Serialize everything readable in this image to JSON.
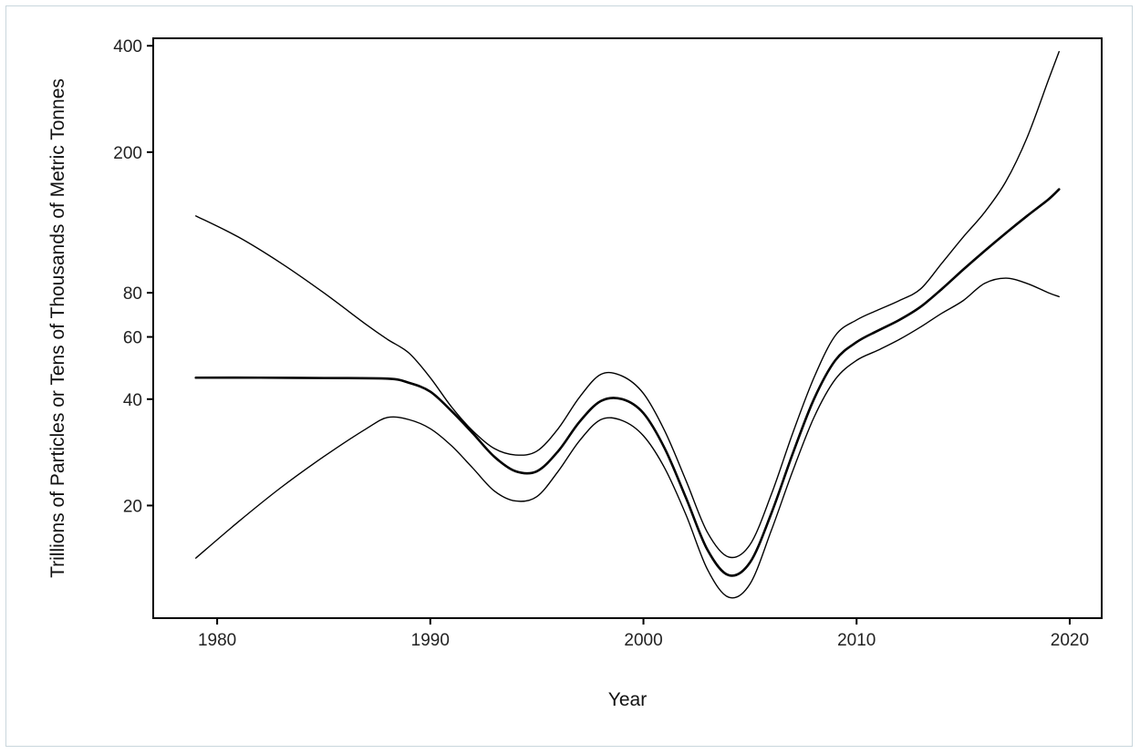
{
  "chart_data": {
    "type": "line",
    "title": "",
    "xlabel": "Year",
    "ylabel": "Trillions of Particles or Tens of Thousands of Metric Tonnes",
    "x_ticks": [
      1980,
      1990,
      2000,
      2010,
      2020
    ],
    "y_ticks": [
      20,
      40,
      60,
      80,
      200,
      400
    ],
    "xlim": [
      1977,
      2021.5
    ],
    "y_scale": "log",
    "ylim": [
      9.6,
      420
    ],
    "grid": false,
    "legend": "none",
    "series": [
      {
        "role": "estimate",
        "points": [
          [
            1979,
            46
          ],
          [
            1982,
            46
          ],
          [
            1985,
            45.9
          ],
          [
            1988,
            45.7
          ],
          [
            1989,
            44.5
          ],
          [
            1990,
            42
          ],
          [
            1991,
            37
          ],
          [
            1992,
            32
          ],
          [
            1993,
            27.5
          ],
          [
            1994,
            25
          ],
          [
            1995,
            25
          ],
          [
            1996,
            28.5
          ],
          [
            1997,
            34.5
          ],
          [
            1998,
            39.5
          ],
          [
            1999,
            40
          ],
          [
            2000,
            36.5
          ],
          [
            2001,
            29
          ],
          [
            2002,
            21
          ],
          [
            2003,
            15
          ],
          [
            2004,
            12.7
          ],
          [
            2005,
            13.8
          ],
          [
            2006,
            19
          ],
          [
            2007,
            28
          ],
          [
            2008,
            40
          ],
          [
            2009,
            51.5
          ],
          [
            2010,
            58
          ],
          [
            2011,
            62.5
          ],
          [
            2012,
            67
          ],
          [
            2013,
            73
          ],
          [
            2014,
            82
          ],
          [
            2015,
            93
          ],
          [
            2016,
            105
          ],
          [
            2017,
            118
          ],
          [
            2018,
            132
          ],
          [
            2019,
            147
          ],
          [
            2019.5,
            157
          ]
        ]
      },
      {
        "role": "upper-bound",
        "points": [
          [
            1979,
            132
          ],
          [
            1981,
            115
          ],
          [
            1983,
            97
          ],
          [
            1985,
            80
          ],
          [
            1987,
            65
          ],
          [
            1988,
            59
          ],
          [
            1989,
            54
          ],
          [
            1990,
            46
          ],
          [
            1991,
            38
          ],
          [
            1992,
            32.5
          ],
          [
            1993,
            29
          ],
          [
            1994,
            27.8
          ],
          [
            1995,
            28.5
          ],
          [
            1996,
            33
          ],
          [
            1997,
            40.5
          ],
          [
            1998,
            47
          ],
          [
            1999,
            46.5
          ],
          [
            2000,
            41.5
          ],
          [
            2001,
            32.5
          ],
          [
            2002,
            23.5
          ],
          [
            2003,
            16.8
          ],
          [
            2004,
            14.3
          ],
          [
            2005,
            15.5
          ],
          [
            2006,
            21.5
          ],
          [
            2007,
            32
          ],
          [
            2008,
            46
          ],
          [
            2009,
            60.5
          ],
          [
            2010,
            67
          ],
          [
            2011,
            71.5
          ],
          [
            2012,
            76
          ],
          [
            2013,
            82
          ],
          [
            2014,
            97
          ],
          [
            2015,
            115
          ],
          [
            2016,
            135
          ],
          [
            2017,
            165
          ],
          [
            2018,
            220
          ],
          [
            2019,
            320
          ],
          [
            2019.5,
            385
          ]
        ]
      },
      {
        "role": "lower-bound",
        "points": [
          [
            1979,
            14.2
          ],
          [
            1981,
            18
          ],
          [
            1983,
            22.5
          ],
          [
            1985,
            27.5
          ],
          [
            1987,
            33
          ],
          [
            1988,
            35.5
          ],
          [
            1989,
            35
          ],
          [
            1990,
            33
          ],
          [
            1991,
            29.5
          ],
          [
            1992,
            25.5
          ],
          [
            1993,
            22
          ],
          [
            1994,
            20.6
          ],
          [
            1995,
            21.2
          ],
          [
            1996,
            25
          ],
          [
            1997,
            30.5
          ],
          [
            1998,
            35
          ],
          [
            1999,
            34.8
          ],
          [
            2000,
            31.5
          ],
          [
            2001,
            25.5
          ],
          [
            2002,
            18.8
          ],
          [
            2003,
            13.2
          ],
          [
            2004,
            11
          ],
          [
            2005,
            12
          ],
          [
            2006,
            17
          ],
          [
            2007,
            25
          ],
          [
            2008,
            35.5
          ],
          [
            2009,
            45.5
          ],
          [
            2010,
            51.5
          ],
          [
            2011,
            55
          ],
          [
            2012,
            59
          ],
          [
            2013,
            64
          ],
          [
            2014,
            70
          ],
          [
            2015,
            76
          ],
          [
            2016,
            85
          ],
          [
            2017,
            88
          ],
          [
            2018,
            85
          ],
          [
            2019,
            80
          ],
          [
            2019.5,
            78
          ]
        ]
      }
    ]
  }
}
